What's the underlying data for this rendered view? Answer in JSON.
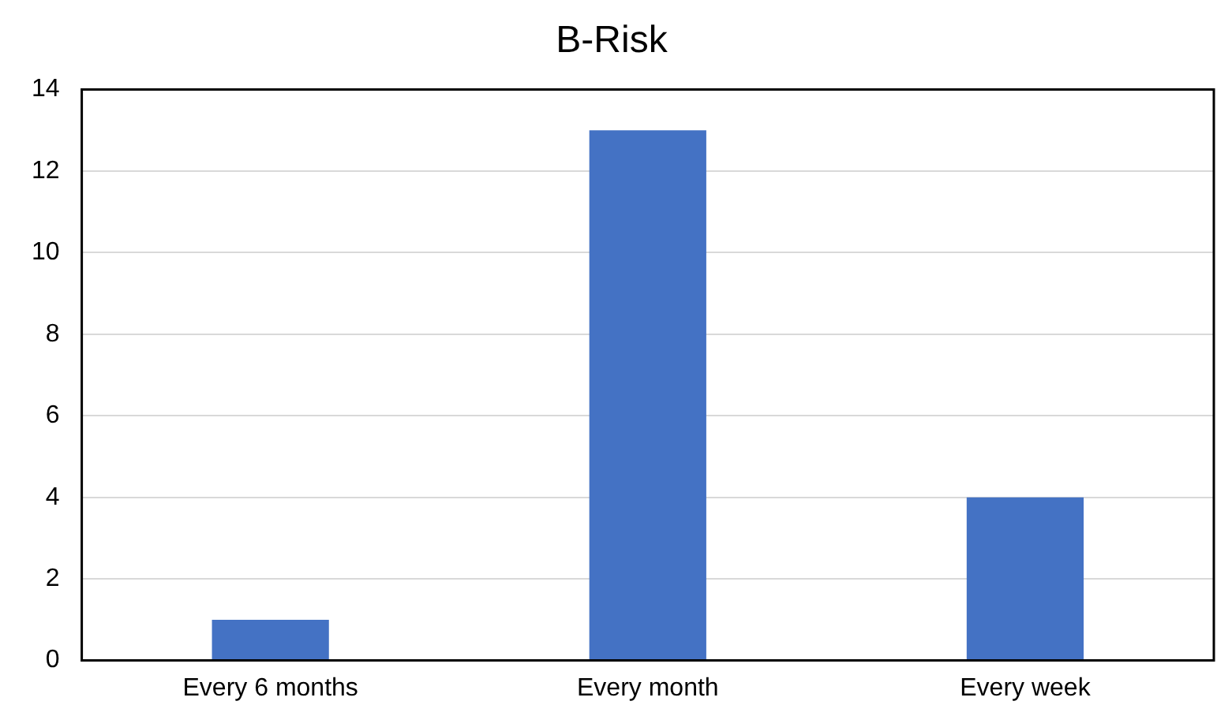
{
  "chart_data": {
    "type": "bar",
    "title": "B-Risk",
    "categories": [
      "Every 6 months",
      "Every month",
      "Every week"
    ],
    "values": [
      1,
      13,
      4
    ],
    "color": "#4472c4",
    "ylim": [
      0,
      14
    ],
    "yticks": [
      0,
      2,
      4,
      6,
      8,
      10,
      12,
      14
    ],
    "grid": "y"
  }
}
